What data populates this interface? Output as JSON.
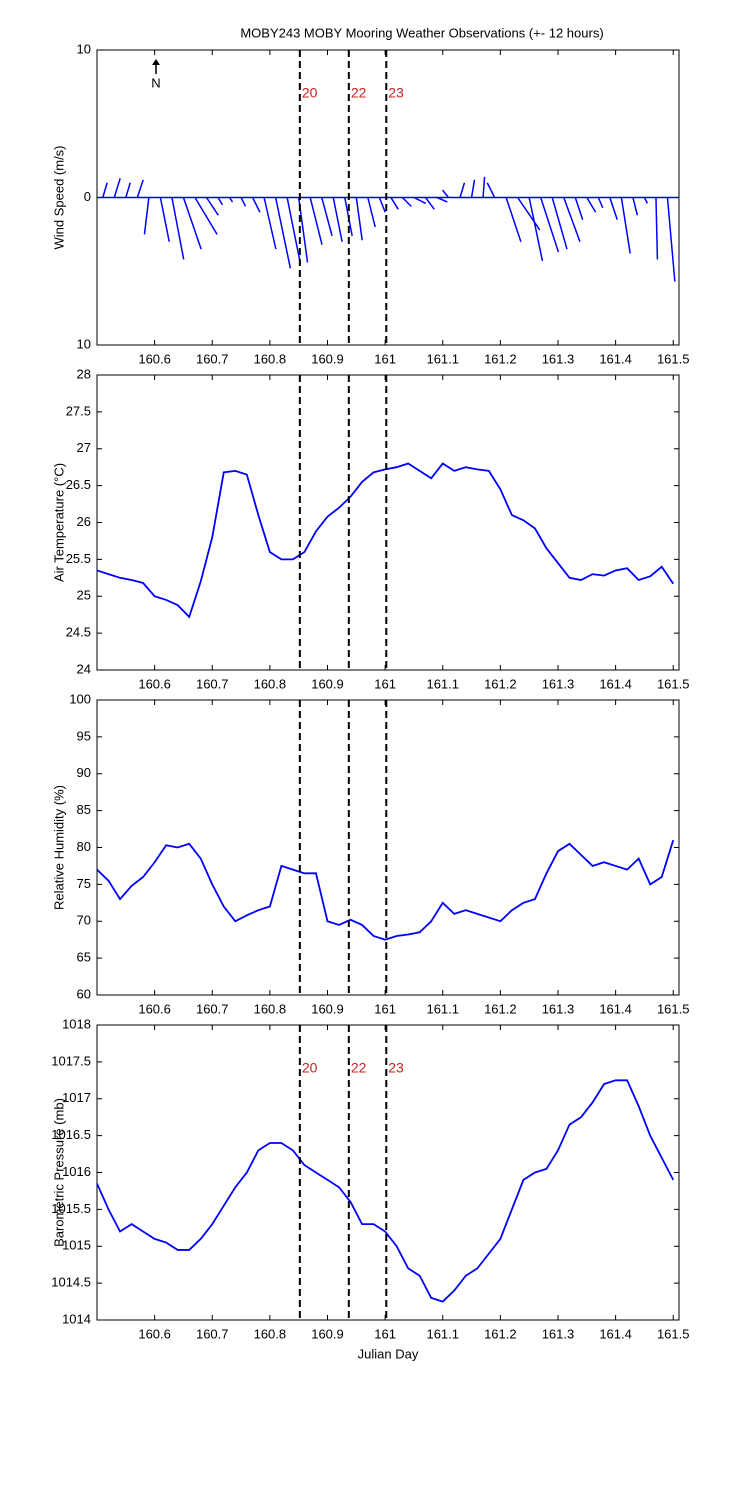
{
  "chart_data": [
    {
      "type": "stick",
      "title": "MOBY243 MOBY Mooring Weather Observations (+- 12 hours)",
      "y_label": "Wind Speed (m/s)",
      "north_label": "N",
      "color": "#0000ff",
      "x": [
        160.51,
        160.53,
        160.55,
        160.57,
        160.59,
        160.61,
        160.63,
        160.65,
        160.67,
        160.69,
        160.71,
        160.73,
        160.75,
        160.77,
        160.79,
        160.81,
        160.83,
        160.85,
        160.87,
        160.89,
        160.91,
        160.93,
        160.95,
        160.97,
        160.99,
        161.01,
        161.03,
        161.05,
        161.07,
        161.09,
        161.11,
        161.13,
        161.15,
        161.17,
        161.19,
        161.21,
        161.23,
        161.25,
        161.27,
        161.29,
        161.31,
        161.33,
        161.35,
        161.37,
        161.39,
        161.41,
        161.43,
        161.45,
        161.47,
        161.49
      ],
      "values": [
        1.0,
        1.3,
        1.0,
        1.2,
        -2.5,
        -3.0,
        -4.2,
        -3.5,
        -2.5,
        -1.2,
        -0.5,
        -0.3,
        -0.6,
        -1.0,
        -3.5,
        -4.8,
        -4.5,
        -4.4,
        -3.2,
        -2.6,
        -3.0,
        -2.6,
        -2.9,
        -2.0,
        -1.0,
        -0.8,
        -0.6,
        -0.4,
        -0.8,
        -0.3,
        0.5,
        1.0,
        1.2,
        1.4,
        1.0,
        -3.0,
        -2.2,
        -4.3,
        -3.7,
        -3.5,
        -3.0,
        -1.5,
        -1.0,
        -0.7,
        -1.5,
        -3.8,
        -1.2,
        -0.4,
        -4.2,
        -5.7
      ],
      "u": [
        0.3,
        0.4,
        0.3,
        0.4,
        -0.3,
        0.6,
        0.8,
        1.2,
        1.5,
        0.8,
        0.3,
        0.2,
        0.3,
        0.5,
        0.8,
        1.0,
        0.9,
        0.6,
        0.8,
        0.7,
        0.6,
        0.5,
        0.4,
        0.5,
        0.4,
        0.5,
        0.6,
        0.8,
        0.6,
        0.7,
        -0.4,
        0.3,
        0.2,
        0.1,
        -0.5,
        1.0,
        1.5,
        0.9,
        1.2,
        1.0,
        1.1,
        0.5,
        0.6,
        0.3,
        0.5,
        0.6,
        0.3,
        0.2,
        0.1,
        0.5
      ],
      "xlim": [
        160.5,
        161.51
      ],
      "xticks": [
        160.6,
        160.7,
        160.8,
        160.9,
        161,
        161.1,
        161.2,
        161.3,
        161.4,
        161.5
      ],
      "ylim": [
        -10,
        10
      ],
      "yticks": [
        {
          "value": -10,
          "label": "10"
        },
        0,
        10
      ],
      "vlines": [
        160.852,
        160.937,
        161.002
      ],
      "vline_labels": [
        "20",
        "22",
        "23"
      ]
    },
    {
      "type": "line",
      "y_label": "Air Temperature (°C)",
      "color": "#0000ff",
      "x": [
        160.5,
        160.52,
        160.54,
        160.56,
        160.58,
        160.6,
        160.62,
        160.64,
        160.66,
        160.68,
        160.7,
        160.72,
        160.74,
        160.76,
        160.78,
        160.8,
        160.82,
        160.84,
        160.86,
        160.88,
        160.9,
        160.92,
        160.94,
        160.96,
        160.98,
        161,
        161.02,
        161.04,
        161.06,
        161.08,
        161.1,
        161.12,
        161.14,
        161.16,
        161.18,
        161.2,
        161.22,
        161.24,
        161.26,
        161.28,
        161.3,
        161.32,
        161.34,
        161.36,
        161.38,
        161.4,
        161.42,
        161.44,
        161.46,
        161.48,
        161.5
      ],
      "values": [
        25.35,
        25.3,
        25.25,
        25.22,
        25.18,
        25.0,
        24.95,
        24.88,
        24.72,
        25.2,
        25.8,
        26.68,
        26.7,
        26.65,
        26.1,
        25.6,
        25.5,
        25.5,
        25.6,
        25.88,
        26.08,
        26.2,
        26.35,
        26.55,
        26.68,
        26.72,
        26.75,
        26.8,
        26.7,
        26.6,
        26.8,
        26.7,
        26.75,
        26.72,
        26.7,
        26.45,
        26.1,
        26.03,
        25.92,
        25.65,
        25.45,
        25.25,
        25.22,
        25.3,
        25.28,
        25.35,
        25.38,
        25.22,
        25.27,
        25.4,
        25.17
      ],
      "xlim": [
        160.5,
        161.51
      ],
      "xticks": [
        160.6,
        160.7,
        160.8,
        160.9,
        161,
        161.1,
        161.2,
        161.3,
        161.4,
        161.5
      ],
      "ylim": [
        24,
        28
      ],
      "yticks": [
        24,
        24.5,
        25,
        25.5,
        26,
        26.5,
        27,
        27.5,
        28
      ],
      "vlines": [
        160.852,
        160.937,
        161.002
      ]
    },
    {
      "type": "line",
      "y_label": "Relative Humidity (%)",
      "color": "#0000ff",
      "x": [
        160.5,
        160.52,
        160.54,
        160.56,
        160.58,
        160.6,
        160.62,
        160.64,
        160.66,
        160.68,
        160.7,
        160.72,
        160.74,
        160.76,
        160.78,
        160.8,
        160.82,
        160.84,
        160.86,
        160.88,
        160.9,
        160.92,
        160.94,
        160.96,
        160.98,
        161,
        161.02,
        161.04,
        161.06,
        161.08,
        161.1,
        161.12,
        161.14,
        161.16,
        161.18,
        161.2,
        161.22,
        161.24,
        161.26,
        161.28,
        161.3,
        161.32,
        161.34,
        161.36,
        161.38,
        161.4,
        161.42,
        161.44,
        161.46,
        161.48,
        161.5
      ],
      "values": [
        77,
        75.5,
        73,
        74.8,
        76,
        78,
        80.3,
        80,
        80.5,
        78.5,
        75,
        72,
        70,
        70.8,
        71.5,
        72,
        77.5,
        77,
        76.5,
        76.5,
        70,
        69.5,
        70.2,
        69.5,
        68,
        67.5,
        68,
        68.2,
        68.5,
        70,
        72.5,
        71,
        71.5,
        71,
        70.5,
        70,
        71.5,
        72.5,
        73,
        76.5,
        79.5,
        80.5,
        79,
        77.5,
        78,
        77.5,
        77,
        78.5,
        75,
        76,
        81
      ],
      "xlim": [
        160.5,
        161.51
      ],
      "xticks": [
        160.6,
        160.7,
        160.8,
        160.9,
        161,
        161.1,
        161.2,
        161.3,
        161.4,
        161.5
      ],
      "ylim": [
        60,
        100
      ],
      "yticks": [
        60,
        65,
        70,
        75,
        80,
        85,
        90,
        95,
        100
      ],
      "vlines": [
        160.852,
        160.937,
        161.002
      ]
    },
    {
      "type": "line",
      "y_label": "Barometric Pressure (mb)",
      "x_label": "Julian Day",
      "color": "#0000ff",
      "x": [
        160.5,
        160.52,
        160.54,
        160.56,
        160.58,
        160.6,
        160.62,
        160.64,
        160.66,
        160.68,
        160.7,
        160.72,
        160.74,
        160.76,
        160.78,
        160.8,
        160.82,
        160.84,
        160.86,
        160.88,
        160.9,
        160.92,
        160.94,
        160.96,
        160.98,
        161,
        161.02,
        161.04,
        161.06,
        161.08,
        161.1,
        161.12,
        161.14,
        161.16,
        161.18,
        161.2,
        161.22,
        161.24,
        161.26,
        161.28,
        161.3,
        161.32,
        161.34,
        161.36,
        161.38,
        161.4,
        161.42,
        161.44,
        161.46,
        161.48,
        161.5
      ],
      "values": [
        1015.85,
        1015.5,
        1015.2,
        1015.3,
        1015.2,
        1015.1,
        1015.05,
        1014.95,
        1014.95,
        1015.1,
        1015.3,
        1015.55,
        1015.8,
        1016.0,
        1016.3,
        1016.4,
        1016.4,
        1016.3,
        1016.1,
        1016.0,
        1015.9,
        1015.8,
        1015.6,
        1015.3,
        1015.3,
        1015.2,
        1015.0,
        1014.7,
        1014.6,
        1014.3,
        1014.25,
        1014.4,
        1014.6,
        1014.7,
        1014.9,
        1015.1,
        1015.5,
        1015.9,
        1016.0,
        1016.05,
        1016.3,
        1016.65,
        1016.75,
        1016.95,
        1017.2,
        1017.25,
        1017.25,
        1016.9,
        1016.5,
        1016.2,
        1015.9
      ],
      "xlim": [
        160.5,
        161.51
      ],
      "xticks": [
        160.6,
        160.7,
        160.8,
        160.9,
        161,
        161.1,
        161.2,
        161.3,
        161.4,
        161.5
      ],
      "ylim": [
        1014,
        1018
      ],
      "yticks": [
        1014,
        1014.5,
        1015,
        1015.5,
        1016,
        1016.5,
        1017,
        1017.5,
        1018
      ],
      "vlines": [
        160.852,
        160.937,
        161.002
      ],
      "vline_labels": [
        "20",
        "22",
        "23"
      ]
    }
  ]
}
